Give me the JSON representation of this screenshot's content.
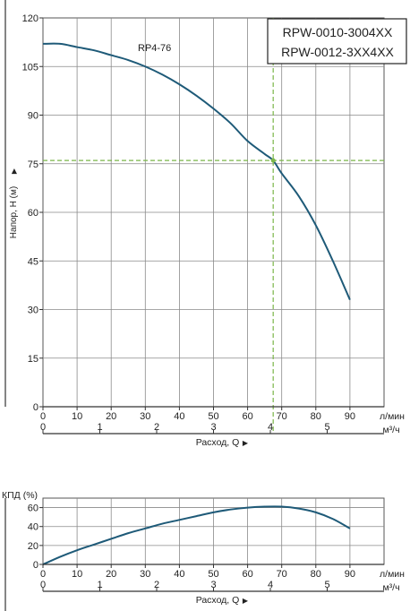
{
  "chart_data": [
    {
      "type": "line",
      "title_box": [
        "RPW-0010-3004XX",
        "RPW-0012-3XX4XX"
      ],
      "ylabel": "Напор, Н (м)",
      "ylabel_arrow": "▶",
      "xlabel": "Расход, Q",
      "xlabel_arrow": "▶",
      "x_unit_top": "л/мин",
      "x_unit_bottom": "м³/ч",
      "xlim": [
        0,
        100
      ],
      "ylim": [
        0,
        120
      ],
      "x_ticks_lpm": [
        "0",
        "10",
        "20",
        "30",
        "40",
        "50",
        "60",
        "70",
        "80",
        "90"
      ],
      "x_ticks_m3h": [
        "0",
        "1",
        "2",
        "3",
        "4",
        "5"
      ],
      "y_ticks": [
        "0",
        "15",
        "30",
        "45",
        "60",
        "75",
        "90",
        "105",
        "120"
      ],
      "grid": true,
      "series": [
        {
          "name": "RP4-76",
          "color": "#1e5a78",
          "x": [
            0,
            5,
            10,
            15,
            20,
            25,
            30,
            35,
            40,
            45,
            50,
            55,
            60,
            65,
            67.5,
            70,
            75,
            80,
            85,
            90
          ],
          "y": [
            112,
            112,
            111,
            110,
            108.5,
            107,
            105,
            102.5,
            99.5,
            96,
            92,
            87.5,
            82,
            78,
            76,
            72,
            65,
            56,
            45,
            33
          ]
        }
      ],
      "operating_point": {
        "x": 67.5,
        "y": 76,
        "color": "#7ab648"
      }
    },
    {
      "type": "line",
      "ylabel": "КПД (%)",
      "xlabel": "Расход, Q",
      "xlabel_arrow": "▶",
      "x_unit_top": "л/мин",
      "x_unit_bottom": "м³/ч",
      "xlim": [
        0,
        100
      ],
      "ylim": [
        0,
        70
      ],
      "x_ticks_lpm": [
        "0",
        "10",
        "20",
        "30",
        "40",
        "50",
        "60",
        "70",
        "80",
        "90"
      ],
      "x_ticks_m3h": [
        "0",
        "1",
        "2",
        "3",
        "4",
        "5"
      ],
      "y_ticks": [
        "0",
        "20",
        "40",
        "60"
      ],
      "grid": true,
      "series": [
        {
          "color": "#1e5a78",
          "x": [
            0,
            5,
            10,
            15,
            20,
            25,
            30,
            35,
            40,
            45,
            50,
            55,
            60,
            65,
            70,
            75,
            80,
            85,
            90
          ],
          "y": [
            0,
            8,
            15,
            21,
            27,
            33,
            38,
            43,
            47,
            51,
            55,
            58,
            60,
            61,
            61,
            59,
            55,
            48,
            38
          ]
        }
      ]
    }
  ]
}
